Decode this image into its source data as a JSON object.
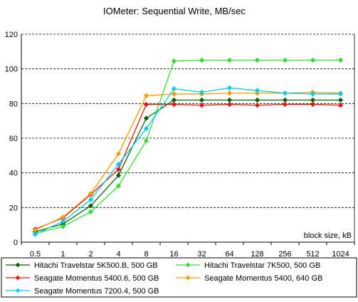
{
  "chart_data": {
    "type": "line",
    "title": "IOMeter: Sequential  Write, MB/sec",
    "xlabel": "block size, kB",
    "ylabel": "",
    "categories": [
      "0.5",
      "1",
      "2",
      "4",
      "8",
      "16",
      "32",
      "64",
      "128",
      "256",
      "512",
      "1024"
    ],
    "ylim": [
      0,
      120
    ],
    "yticks": [
      0,
      20,
      40,
      60,
      80,
      100,
      120
    ],
    "grid": "horizontal-dashed",
    "legend_placement": "bottom",
    "series": [
      {
        "name": "Hitachi Travelstar 5K500.B, 500 GB",
        "color": "#006400",
        "values": [
          6,
          10.5,
          21,
          38.5,
          71.5,
          82,
          82,
          82,
          82,
          82,
          82,
          82
        ]
      },
      {
        "name": "Hitachi Travelstar 7K500, 500 GB",
        "color": "#33dd33",
        "values": [
          5,
          9,
          17.5,
          32.5,
          58.5,
          104.5,
          105,
          105,
          105,
          105,
          105,
          105
        ]
      },
      {
        "name": "Seagate Momentus 5400.6, 500 GB",
        "color": "#ee1111",
        "values": [
          7.5,
          14,
          27.5,
          42,
          79.5,
          79.5,
          79,
          79.5,
          79,
          79.5,
          79.5,
          79
        ]
      },
      {
        "name": "Seagate Momentus 5400, 640 GB",
        "color": "#ff9900",
        "values": [
          7,
          14.5,
          28,
          51,
          84.5,
          85.5,
          85.5,
          86,
          86,
          86,
          86.5,
          86
        ]
      },
      {
        "name": "Seagate Momentus 7200.4, 500 GB",
        "color": "#00ccee",
        "values": [
          4.5,
          12,
          24.5,
          45,
          65.5,
          88.5,
          86.5,
          89,
          87.5,
          86,
          85.5,
          85.5
        ]
      }
    ]
  }
}
